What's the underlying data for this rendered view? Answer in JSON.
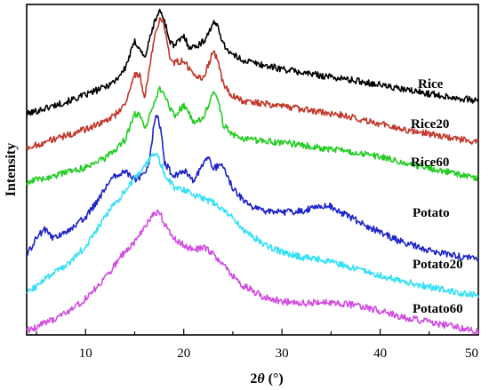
{
  "chart_data": {
    "type": "line",
    "title": "",
    "xlabel_prefix": "2",
    "xlabel_var": "θ",
    "xlabel_unit": " (°)",
    "ylabel": "Intensity",
    "xlim": [
      4,
      50
    ],
    "ylim": [
      0,
      1
    ],
    "x_ticks": [
      10,
      20,
      30,
      40,
      50
    ],
    "y_ticks_shown": false,
    "grid": false,
    "legend": "inline labels at right",
    "series": [
      {
        "name": "Rice",
        "color": "#000000",
        "points": [
          [
            4,
            0.668
          ],
          [
            6,
            0.687
          ],
          [
            8,
            0.705
          ],
          [
            10,
            0.726
          ],
          [
            12,
            0.751
          ],
          [
            13,
            0.769
          ],
          [
            14,
            0.805
          ],
          [
            15,
            0.887
          ],
          [
            15.5,
            0.87
          ],
          [
            16,
            0.837
          ],
          [
            17,
            0.945
          ],
          [
            17.5,
            0.981
          ],
          [
            18,
            0.958
          ],
          [
            18.5,
            0.894
          ],
          [
            19,
            0.873
          ],
          [
            20,
            0.905
          ],
          [
            20.5,
            0.874
          ],
          [
            21,
            0.87
          ],
          [
            22,
            0.887
          ],
          [
            23,
            0.942
          ],
          [
            23.5,
            0.936
          ],
          [
            24,
            0.88
          ],
          [
            25,
            0.846
          ],
          [
            26,
            0.832
          ],
          [
            28,
            0.817
          ],
          [
            30,
            0.805
          ],
          [
            32,
            0.794
          ],
          [
            34,
            0.785
          ],
          [
            36,
            0.776
          ],
          [
            38,
            0.767
          ],
          [
            40,
            0.757
          ],
          [
            42,
            0.744
          ],
          [
            45,
            0.73
          ],
          [
            47,
            0.721
          ],
          [
            50,
            0.708
          ]
        ]
      },
      {
        "name": "Rice20",
        "color": "#c0392b",
        "points": [
          [
            4,
            0.566
          ],
          [
            6,
            0.585
          ],
          [
            8,
            0.603
          ],
          [
            10,
            0.622
          ],
          [
            12,
            0.647
          ],
          [
            13,
            0.665
          ],
          [
            14,
            0.7
          ],
          [
            15,
            0.785
          ],
          [
            15.5,
            0.791
          ],
          [
            16,
            0.713
          ],
          [
            17,
            0.897
          ],
          [
            17.5,
            0.953
          ],
          [
            18,
            0.941
          ],
          [
            18.5,
            0.849
          ],
          [
            19,
            0.824
          ],
          [
            20,
            0.831
          ],
          [
            21,
            0.781
          ],
          [
            22,
            0.776
          ],
          [
            23,
            0.858
          ],
          [
            23.5,
            0.828
          ],
          [
            24,
            0.758
          ],
          [
            25,
            0.723
          ],
          [
            26,
            0.708
          ],
          [
            28,
            0.701
          ],
          [
            30,
            0.692
          ],
          [
            32,
            0.683
          ],
          [
            34,
            0.675
          ],
          [
            36,
            0.665
          ],
          [
            38,
            0.653
          ],
          [
            40,
            0.639
          ],
          [
            42,
            0.625
          ],
          [
            45,
            0.608
          ],
          [
            47,
            0.598
          ],
          [
            50,
            0.583
          ]
        ]
      },
      {
        "name": "Rice60",
        "color": "#22cc22",
        "points": [
          [
            4,
            0.462
          ],
          [
            6,
            0.476
          ],
          [
            8,
            0.49
          ],
          [
            10,
            0.507
          ],
          [
            12,
            0.535
          ],
          [
            13,
            0.558
          ],
          [
            14,
            0.59
          ],
          [
            15,
            0.667
          ],
          [
            15.5,
            0.665
          ],
          [
            16,
            0.623
          ],
          [
            17,
            0.699
          ],
          [
            17.5,
            0.744
          ],
          [
            18,
            0.726
          ],
          [
            19,
            0.663
          ],
          [
            20,
            0.694
          ],
          [
            21,
            0.647
          ],
          [
            22,
            0.652
          ],
          [
            23,
            0.74
          ],
          [
            23.5,
            0.715
          ],
          [
            24,
            0.639
          ],
          [
            25,
            0.605
          ],
          [
            26,
            0.592
          ],
          [
            28,
            0.587
          ],
          [
            30,
            0.582
          ],
          [
            32,
            0.574
          ],
          [
            34,
            0.566
          ],
          [
            36,
            0.558
          ],
          [
            38,
            0.549
          ],
          [
            40,
            0.538
          ],
          [
            42,
            0.525
          ],
          [
            45,
            0.505
          ],
          [
            47,
            0.492
          ],
          [
            50,
            0.475
          ]
        ]
      },
      {
        "name": "Potato",
        "color": "#1f24c8",
        "points": [
          [
            4,
            0.241
          ],
          [
            5,
            0.292
          ],
          [
            5.8,
            0.321
          ],
          [
            6.5,
            0.294
          ],
          [
            8,
            0.308
          ],
          [
            10,
            0.357
          ],
          [
            11,
            0.396
          ],
          [
            12,
            0.445
          ],
          [
            13,
            0.483
          ],
          [
            14,
            0.495
          ],
          [
            15,
            0.471
          ],
          [
            16,
            0.486
          ],
          [
            16.5,
            0.531
          ],
          [
            17,
            0.64
          ],
          [
            17.3,
            0.667
          ],
          [
            17.7,
            0.617
          ],
          [
            18,
            0.524
          ],
          [
            19,
            0.478
          ],
          [
            20,
            0.498
          ],
          [
            21,
            0.465
          ],
          [
            22,
            0.519
          ],
          [
            22.5,
            0.543
          ],
          [
            23,
            0.506
          ],
          [
            24,
            0.513
          ],
          [
            25,
            0.444
          ],
          [
            26,
            0.409
          ],
          [
            27,
            0.385
          ],
          [
            28,
            0.375
          ],
          [
            30,
            0.372
          ],
          [
            32,
            0.374
          ],
          [
            34,
            0.391
          ],
          [
            35,
            0.389
          ],
          [
            36,
            0.37
          ],
          [
            38,
            0.34
          ],
          [
            40,
            0.31
          ],
          [
            42,
            0.284
          ],
          [
            45,
            0.256
          ],
          [
            47,
            0.242
          ],
          [
            50,
            0.23
          ]
        ]
      },
      {
        "name": "Potato20",
        "color": "#33e0f5",
        "points": [
          [
            4,
            0.125
          ],
          [
            6,
            0.171
          ],
          [
            8,
            0.209
          ],
          [
            10,
            0.268
          ],
          [
            12,
            0.356
          ],
          [
            13,
            0.398
          ],
          [
            14,
            0.436
          ],
          [
            15,
            0.47
          ],
          [
            16,
            0.509
          ],
          [
            17,
            0.55
          ],
          [
            17.5,
            0.531
          ],
          [
            18,
            0.491
          ],
          [
            19,
            0.447
          ],
          [
            20,
            0.438
          ],
          [
            21,
            0.425
          ],
          [
            22,
            0.413
          ],
          [
            23,
            0.401
          ],
          [
            24,
            0.382
          ],
          [
            25,
            0.353
          ],
          [
            26,
            0.318
          ],
          [
            28,
            0.279
          ],
          [
            30,
            0.25
          ],
          [
            32,
            0.236
          ],
          [
            34,
            0.228
          ],
          [
            36,
            0.213
          ],
          [
            38,
            0.197
          ],
          [
            40,
            0.18
          ],
          [
            42,
            0.165
          ],
          [
            45,
            0.145
          ],
          [
            47,
            0.133
          ],
          [
            50,
            0.12
          ]
        ]
      },
      {
        "name": "Potato60",
        "color": "#d04de0",
        "points": [
          [
            4,
            0.012
          ],
          [
            6,
            0.037
          ],
          [
            8,
            0.065
          ],
          [
            10,
            0.109
          ],
          [
            12,
            0.171
          ],
          [
            14,
            0.252
          ],
          [
            15,
            0.279
          ],
          [
            16,
            0.325
          ],
          [
            17,
            0.369
          ],
          [
            17.5,
            0.375
          ],
          [
            18,
            0.339
          ],
          [
            19,
            0.294
          ],
          [
            20,
            0.271
          ],
          [
            21,
            0.258
          ],
          [
            22,
            0.264
          ],
          [
            23,
            0.245
          ],
          [
            24,
            0.213
          ],
          [
            25,
            0.18
          ],
          [
            26,
            0.15
          ],
          [
            28,
            0.117
          ],
          [
            30,
            0.101
          ],
          [
            32,
            0.096
          ],
          [
            34,
            0.099
          ],
          [
            36,
            0.096
          ],
          [
            38,
            0.086
          ],
          [
            40,
            0.073
          ],
          [
            42,
            0.056
          ],
          [
            45,
            0.039
          ],
          [
            47,
            0.028
          ],
          [
            50,
            0.01
          ]
        ]
      }
    ]
  }
}
